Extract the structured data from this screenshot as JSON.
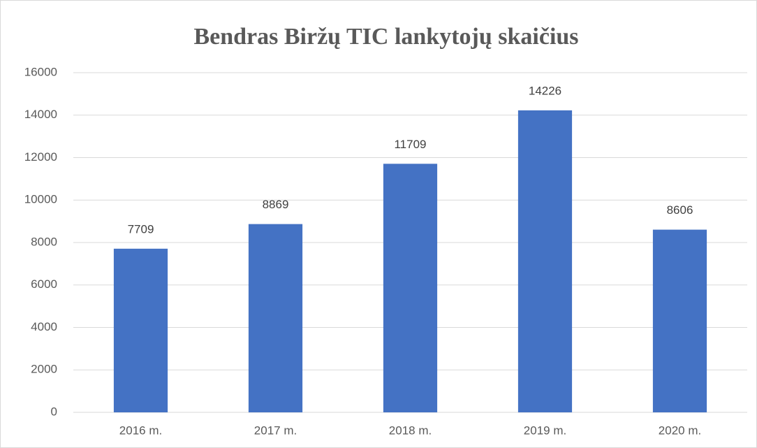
{
  "chart_data": {
    "type": "bar",
    "title": "Bendras Biržų TIC lankytojų skaičius",
    "categories": [
      "2016 m.",
      "2017 m.",
      "2018 m.",
      "2019 m.",
      "2020 m."
    ],
    "values": [
      7709,
      8869,
      11709,
      14226,
      8606
    ],
    "color": "#4472c4",
    "ylim": [
      0,
      16000
    ],
    "yticks": [
      0,
      2000,
      4000,
      6000,
      8000,
      10000,
      12000,
      14000,
      16000
    ],
    "grid": true
  }
}
